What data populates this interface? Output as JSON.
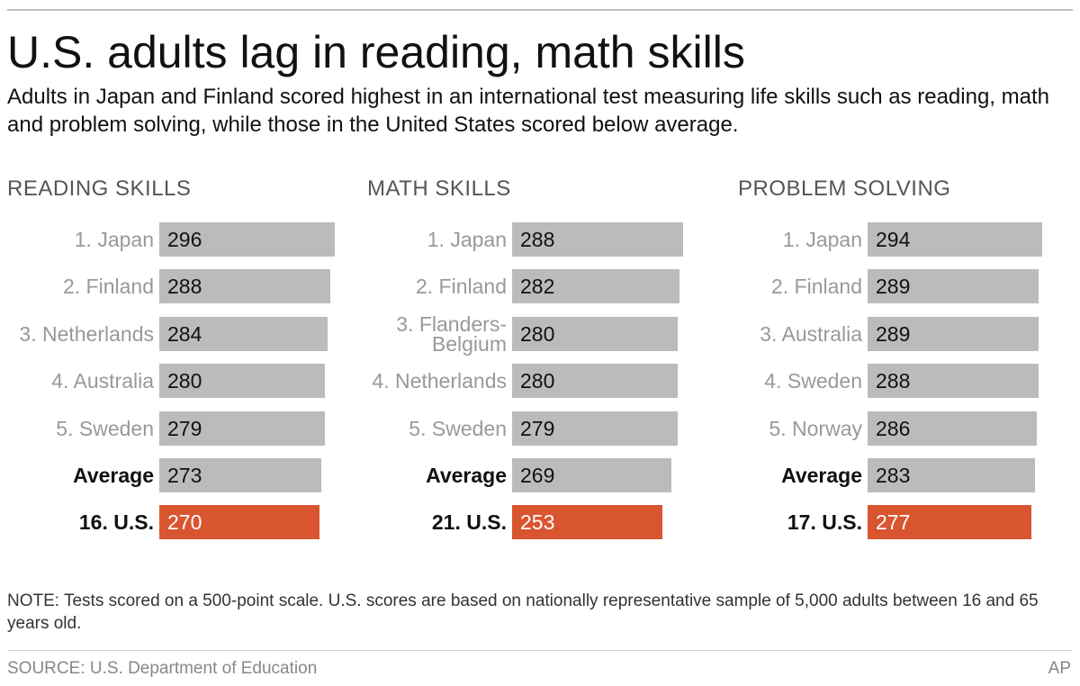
{
  "title": "U.S. adults lag in reading, math skills",
  "subtitle": "Adults in Japan and Finland scored highest in an international test measuring life skills such as reading, math and problem solving, while those in the United States scored below average.",
  "note": "NOTE: Tests scored on a 500-point scale. U.S. scores are based on nationally representative sample of 5,000 adults between 16 and 65 years old.",
  "source": "SOURCE: U.S. Department of Education",
  "credit": "AP",
  "colors": {
    "bar": "#bbbbbb",
    "us_bar": "#d9552f"
  },
  "chart_data": [
    {
      "type": "bar",
      "orientation": "horizontal",
      "title": "READING SKILLS",
      "categories": [
        "1. Japan",
        "2. Finland",
        "3. Netherlands",
        "4. Australia",
        "5. Sweden",
        "Average",
        "16. U.S."
      ],
      "values": [
        296,
        288,
        284,
        280,
        279,
        273,
        270
      ],
      "highlight": [
        "",
        "",
        "",
        "",
        "",
        "bold",
        "us"
      ]
    },
    {
      "type": "bar",
      "orientation": "horizontal",
      "title": "MATH SKILLS",
      "categories": [
        "1. Japan",
        "2. Finland",
        "3. Flanders-\nBelgium",
        "4. Netherlands",
        "5. Sweden",
        "Average",
        "21. U.S."
      ],
      "values": [
        288,
        282,
        280,
        280,
        279,
        269,
        253
      ],
      "highlight": [
        "",
        "",
        "",
        "",
        "",
        "bold",
        "us"
      ]
    },
    {
      "type": "bar",
      "orientation": "horizontal",
      "title": "PROBLEM SOLVING",
      "categories": [
        "1. Japan",
        "2. Finland",
        "3. Australia",
        "4. Sweden",
        "5. Norway",
        "Average",
        "17. U.S."
      ],
      "values": [
        294,
        289,
        289,
        288,
        286,
        283,
        277
      ],
      "highlight": [
        "",
        "",
        "",
        "",
        "",
        "bold",
        "us"
      ]
    }
  ]
}
